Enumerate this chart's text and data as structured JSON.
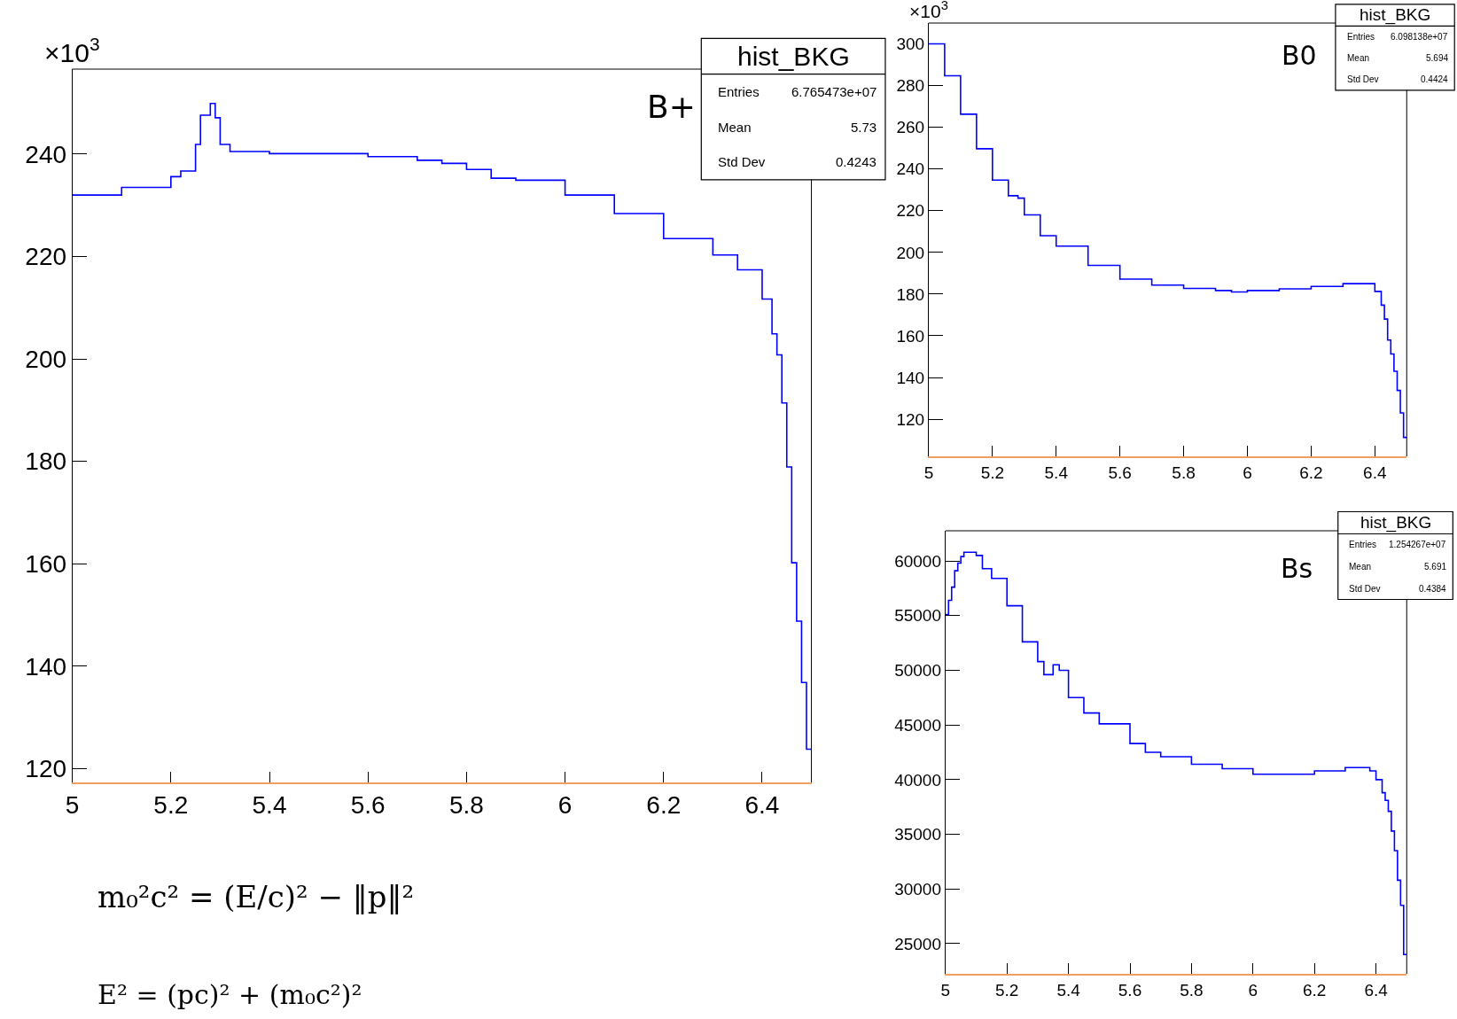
{
  "chart_data": [
    {
      "type": "step",
      "ylabel": "×10$^{3}$",
      "xlim": [
        5,
        6.5
      ],
      "ylim": [
        117.3,
        256.6
      ],
      "xticks": [
        5,
        5.2,
        5.4,
        5.6,
        5.8,
        6,
        6.2,
        6.4
      ],
      "yticks": [
        120,
        140,
        160,
        180,
        200,
        220,
        240
      ],
      "x": [
        5.0,
        5.1,
        5.2,
        5.22,
        5.25,
        5.26,
        5.28,
        5.29,
        5.3,
        5.32,
        5.4,
        5.5,
        5.6,
        5.7,
        5.75,
        5.8,
        5.85,
        5.9,
        6.0,
        6.1,
        6.2,
        6.3,
        6.35,
        6.4,
        6.42,
        6.43,
        6.44,
        6.45,
        6.46,
        6.47,
        6.48,
        6.49,
        6.5
      ],
      "values": [
        232.0,
        233.5,
        235.6,
        236.7,
        241.9,
        247.6,
        249.9,
        247.1,
        241.9,
        240.5,
        240.1,
        240.1,
        239.5,
        238.8,
        238.2,
        237.0,
        235.3,
        234.9,
        232.0,
        228.4,
        223.5,
        220.3,
        217.4,
        211.7,
        204.9,
        200.8,
        191.4,
        178.9,
        160.2,
        148.8,
        136.8,
        123.8,
        123.8
      ],
      "color": "#0000ff",
      "annotations": [
        "B+",
        "hist_BKG",
        "Entries",
        "6.765473e+07",
        "Mean",
        "5.73",
        "Std Dev",
        "0.4243",
        "m₀²c² = (E/c)² − ‖p‖²",
        "E² = (pc)² + (m₀c²)²"
      ]
    },
    {
      "type": "step",
      "ylabel": "×10$^{3}$",
      "xlim": [
        5,
        6.5
      ],
      "ylim": [
        102.2,
        310
      ],
      "xticks": [
        5,
        5.2,
        5.4,
        5.6,
        5.8,
        6,
        6.2,
        6.4
      ],
      "yticks": [
        120,
        140,
        160,
        180,
        200,
        220,
        240,
        260,
        280,
        300
      ],
      "x": [
        5.0,
        5.05,
        5.1,
        5.15,
        5.2,
        5.25,
        5.28,
        5.3,
        5.35,
        5.4,
        5.5,
        5.6,
        5.7,
        5.8,
        5.9,
        5.95,
        6.0,
        6.1,
        6.2,
        6.3,
        6.35,
        6.37,
        6.4,
        6.42,
        6.43,
        6.44,
        6.45,
        6.46,
        6.47,
        6.48,
        6.49,
        6.5
      ],
      "values": [
        300,
        284.7,
        266.3,
        249.7,
        234.7,
        227.2,
        226,
        218,
        208,
        203,
        193.8,
        187.2,
        184.3,
        182.7,
        181.7,
        181,
        181.7,
        182.5,
        183.7,
        185,
        185,
        185,
        181.3,
        174.7,
        168,
        158,
        151.3,
        143,
        133.8,
        123,
        111.3,
        111.3
      ],
      "color": "#0000ff",
      "annotations": [
        "B0",
        "hist_BKG",
        "Entries",
        "6.098138e+07",
        "Mean",
        "5.694",
        "Std Dev",
        "0.4424"
      ]
    },
    {
      "type": "step",
      "xlim": [
        5,
        6.5
      ],
      "ylim": [
        22240,
        62760
      ],
      "xticks": [
        5,
        5.2,
        5.4,
        5.6,
        5.8,
        6,
        6.2,
        6.4
      ],
      "yticks": [
        25000,
        30000,
        35000,
        40000,
        45000,
        50000,
        55000,
        60000
      ],
      "x": [
        5.0,
        5.01,
        5.02,
        5.03,
        5.04,
        5.05,
        5.06,
        5.1,
        5.12,
        5.15,
        5.2,
        5.25,
        5.3,
        5.32,
        5.35,
        5.37,
        5.4,
        5.45,
        5.5,
        5.6,
        5.65,
        5.7,
        5.8,
        5.9,
        6.0,
        6.1,
        6.2,
        6.3,
        6.38,
        6.4,
        6.42,
        6.43,
        6.44,
        6.45,
        6.46,
        6.47,
        6.48,
        6.49,
        6.5
      ],
      "values": [
        55100,
        56400,
        57600,
        59100,
        59800,
        60400,
        60800,
        60500,
        59300,
        58400,
        55900,
        52600,
        50800,
        49600,
        50500,
        50000,
        47500,
        46100,
        45100,
        43300,
        42500,
        42100,
        41400,
        41000,
        40500,
        40500,
        40800,
        41100,
        40800,
        40000,
        38800,
        38100,
        37100,
        35300,
        33500,
        30800,
        28500,
        24000,
        24000
      ],
      "color": "#0000ff",
      "annotations": [
        "Bs",
        "hist_BKG",
        "Entries",
        "1.254267e+07",
        "Mean",
        "5.691",
        "Std Dev",
        "0.4384"
      ]
    }
  ]
}
